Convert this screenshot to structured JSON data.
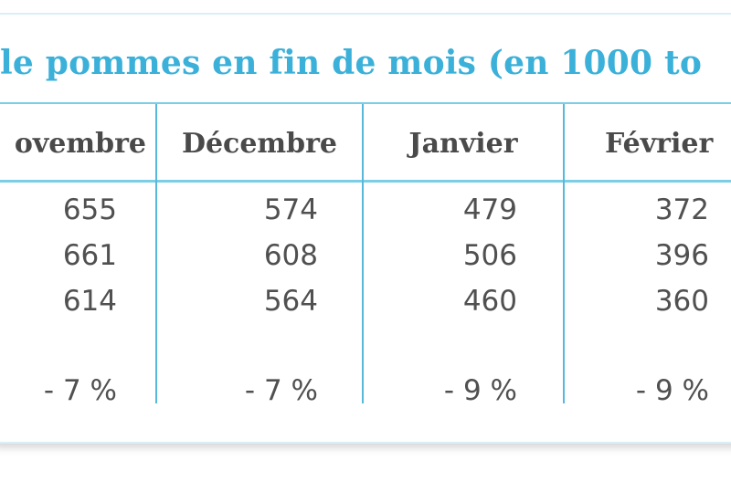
{
  "title": "le pommes en fin de mois (en 1000 to",
  "columns": [
    {
      "header": "ovembre",
      "values": [
        "655",
        "661",
        "614"
      ],
      "variation": "- 7 %"
    },
    {
      "header": "Décembre",
      "values": [
        "574",
        "608",
        "564"
      ],
      "variation": "- 7 %"
    },
    {
      "header": "Janvier",
      "values": [
        "479",
        "506",
        "460"
      ],
      "variation": "- 9 %"
    },
    {
      "header": "Février",
      "values": [
        "372",
        "396",
        "360"
      ],
      "variation": "- 9 %"
    }
  ]
}
